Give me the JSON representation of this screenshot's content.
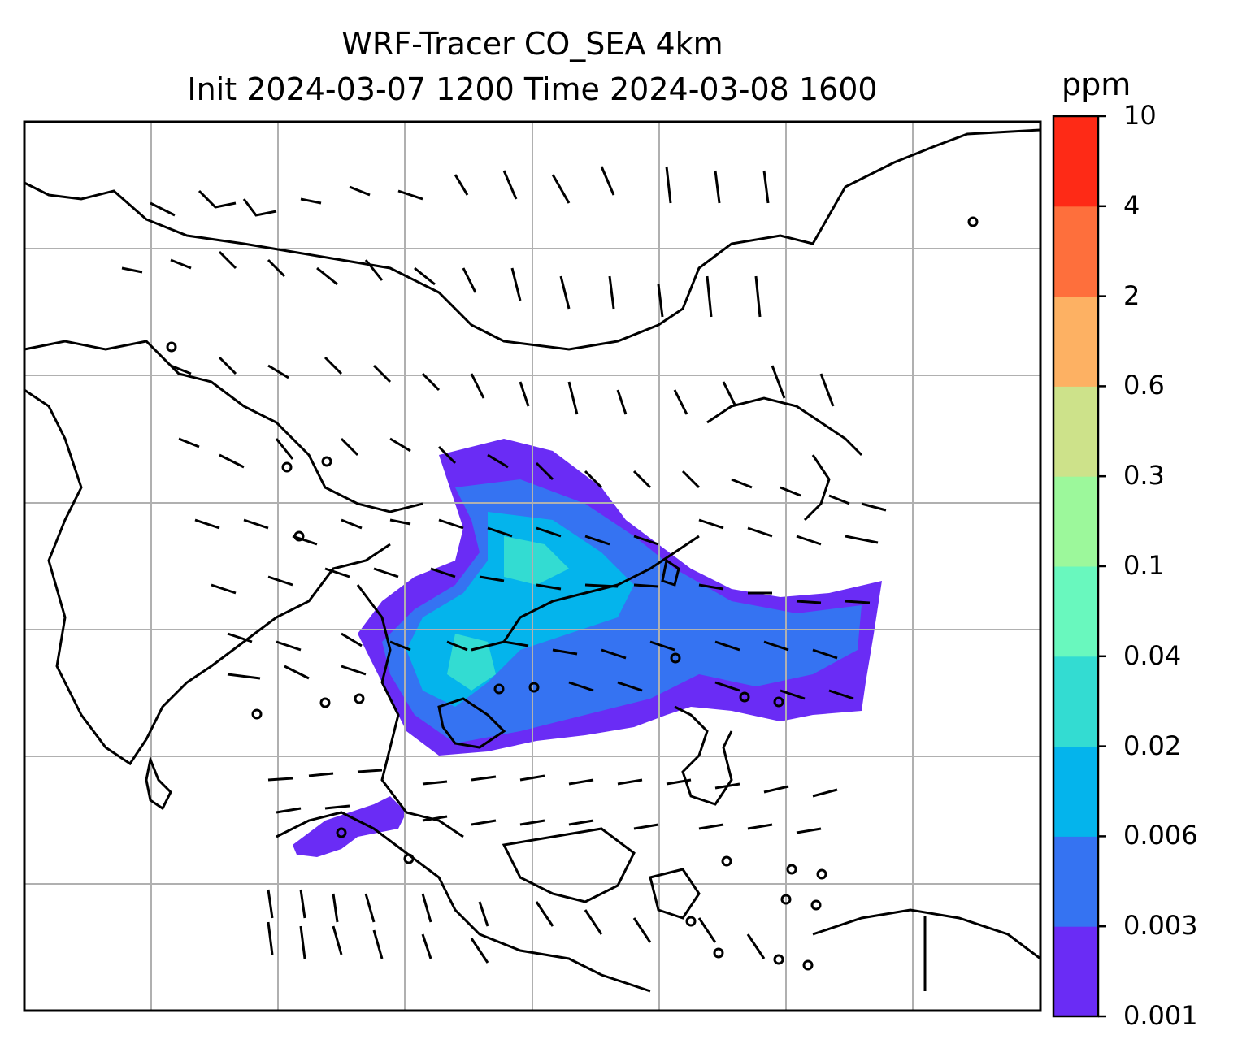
{
  "title": {
    "line1": "WRF-Tracer CO_SEA 4km",
    "line2": "Init 2024-03-07 1200 Time 2024-03-08 1600"
  },
  "colorbar": {
    "unit": "ppm",
    "levels": [
      "0.001",
      "0.003",
      "0.006",
      "0.02",
      "0.04",
      "0.1",
      "0.3",
      "0.6",
      "2",
      "4",
      "10"
    ],
    "colors": [
      "#6a2cf5",
      "#3573f2",
      "#04b4ec",
      "#33dcd2",
      "#69f8be",
      "#9cf89b",
      "#cde28a",
      "#fdb163",
      "#fe6f3c",
      "#fe2a16"
    ]
  },
  "map": {
    "gridlines": true,
    "features": [
      "coastlines",
      "country-borders",
      "wind-barbs",
      "tracer-plume"
    ]
  }
}
